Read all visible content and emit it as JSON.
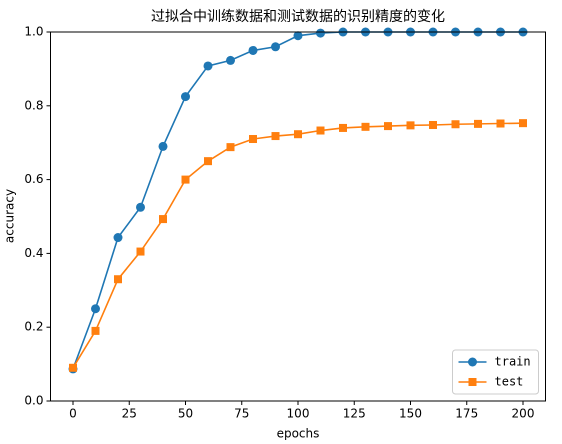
{
  "chart_data": {
    "type": "line",
    "title": "过拟合中训练数据和测试数据的识别精度的变化",
    "xlabel": "epochs",
    "ylabel": "accuracy",
    "x": [
      0,
      10,
      20,
      30,
      40,
      50,
      60,
      70,
      80,
      90,
      100,
      110,
      120,
      130,
      140,
      150,
      160,
      170,
      180,
      190,
      200
    ],
    "series": [
      {
        "name": "train",
        "color": "#1f77b4",
        "marker": "circle",
        "values": [
          0.087,
          0.25,
          0.443,
          0.525,
          0.69,
          0.825,
          0.908,
          0.923,
          0.95,
          0.96,
          0.99,
          0.997,
          1.0,
          1.0,
          1.0,
          1.0,
          1.0,
          1.0,
          1.0,
          1.0,
          1.0
        ]
      },
      {
        "name": "test",
        "color": "#ff7f0e",
        "marker": "square",
        "values": [
          0.09,
          0.19,
          0.33,
          0.405,
          0.493,
          0.6,
          0.65,
          0.688,
          0.71,
          0.718,
          0.723,
          0.733,
          0.74,
          0.743,
          0.745,
          0.747,
          0.748,
          0.75,
          0.751,
          0.752,
          0.753
        ]
      }
    ],
    "xlim": [
      -10,
      210
    ],
    "ylim": [
      0,
      1
    ],
    "xticks": [
      0,
      25,
      50,
      75,
      100,
      125,
      150,
      175,
      200
    ],
    "yticks": [
      {
        "value": 0,
        "label": "0.0"
      },
      0.2,
      0.4,
      0.6,
      0.8,
      {
        "value": 1,
        "label": "1.0"
      }
    ],
    "legend": "lower right"
  }
}
